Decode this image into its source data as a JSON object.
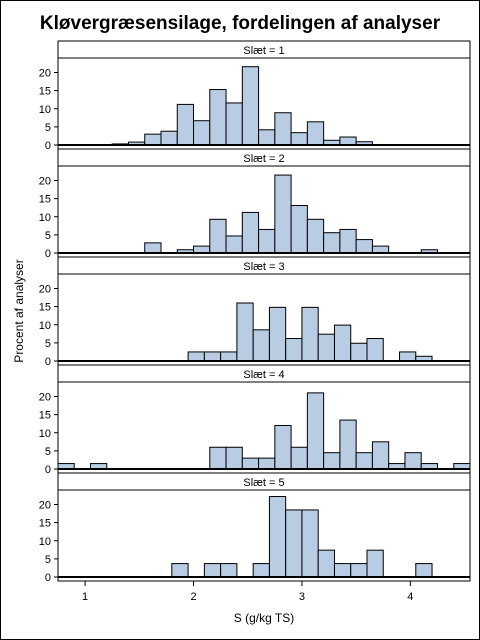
{
  "chart_data": {
    "type": "bar",
    "title": "Kløvergræsensilage, fordelingen af analyser",
    "xlabel": "S (g/kg TS)",
    "ylabel": "Procent af analyser",
    "xlim": [
      0.75,
      4.55
    ],
    "ylim": [
      0,
      24
    ],
    "bin_width": 0.15,
    "x_ticks": [
      1,
      2,
      3,
      4
    ],
    "y_ticks": [
      0,
      5,
      10,
      15,
      20
    ],
    "bar_fill": "#b8cce4",
    "bar_stroke": "#000000",
    "panels": [
      {
        "label": "Slæt = 1",
        "bin_starts": [
          1.25,
          1.4,
          1.55,
          1.7,
          1.85,
          2.0,
          2.15,
          2.3,
          2.45,
          2.6,
          2.75,
          2.9,
          3.05,
          3.2,
          3.35,
          3.5
        ],
        "values": [
          0.3,
          0.8,
          3.0,
          3.8,
          11.2,
          6.7,
          15.3,
          11.6,
          21.6,
          4.2,
          8.9,
          3.4,
          6.4,
          1.3,
          2.2,
          0.9
        ]
      },
      {
        "label": "Slæt = 2",
        "bin_starts": [
          1.55,
          1.85,
          2.0,
          2.15,
          2.3,
          2.45,
          2.6,
          2.75,
          2.9,
          3.05,
          3.2,
          3.35,
          3.5,
          3.65,
          4.1
        ],
        "values": [
          2.8,
          0.9,
          1.9,
          9.3,
          4.7,
          11.2,
          6.5,
          21.5,
          13.1,
          9.3,
          5.6,
          6.5,
          3.7,
          1.9,
          0.9
        ]
      },
      {
        "label": "Slæt = 3",
        "bin_starts": [
          1.95,
          2.1,
          2.25,
          2.4,
          2.55,
          2.7,
          2.85,
          3.0,
          3.15,
          3.3,
          3.45,
          3.6,
          3.9,
          4.05
        ],
        "values": [
          2.5,
          2.5,
          2.5,
          16.0,
          8.6,
          14.8,
          6.2,
          14.8,
          7.4,
          9.9,
          4.9,
          6.2,
          2.5,
          1.3
        ]
      },
      {
        "label": "Slæt = 4",
        "bin_starts": [
          0.75,
          1.05,
          2.15,
          2.3,
          2.45,
          2.6,
          2.75,
          2.9,
          3.05,
          3.2,
          3.35,
          3.5,
          3.65,
          3.8,
          3.95,
          4.1,
          4.4
        ],
        "values": [
          1.5,
          1.5,
          6.0,
          6.0,
          3.0,
          3.0,
          12.0,
          6.0,
          21.0,
          4.5,
          13.5,
          4.5,
          7.5,
          1.5,
          4.5,
          1.5,
          1.5
        ]
      },
      {
        "label": "Slæt = 5",
        "bin_starts": [
          1.8,
          2.1,
          2.25,
          2.55,
          2.7,
          2.85,
          3.0,
          3.15,
          3.3,
          3.45,
          3.6,
          4.05
        ],
        "values": [
          3.7,
          3.7,
          3.7,
          3.7,
          22.2,
          18.5,
          18.5,
          7.4,
          3.7,
          3.7,
          7.4,
          3.7
        ]
      }
    ]
  }
}
